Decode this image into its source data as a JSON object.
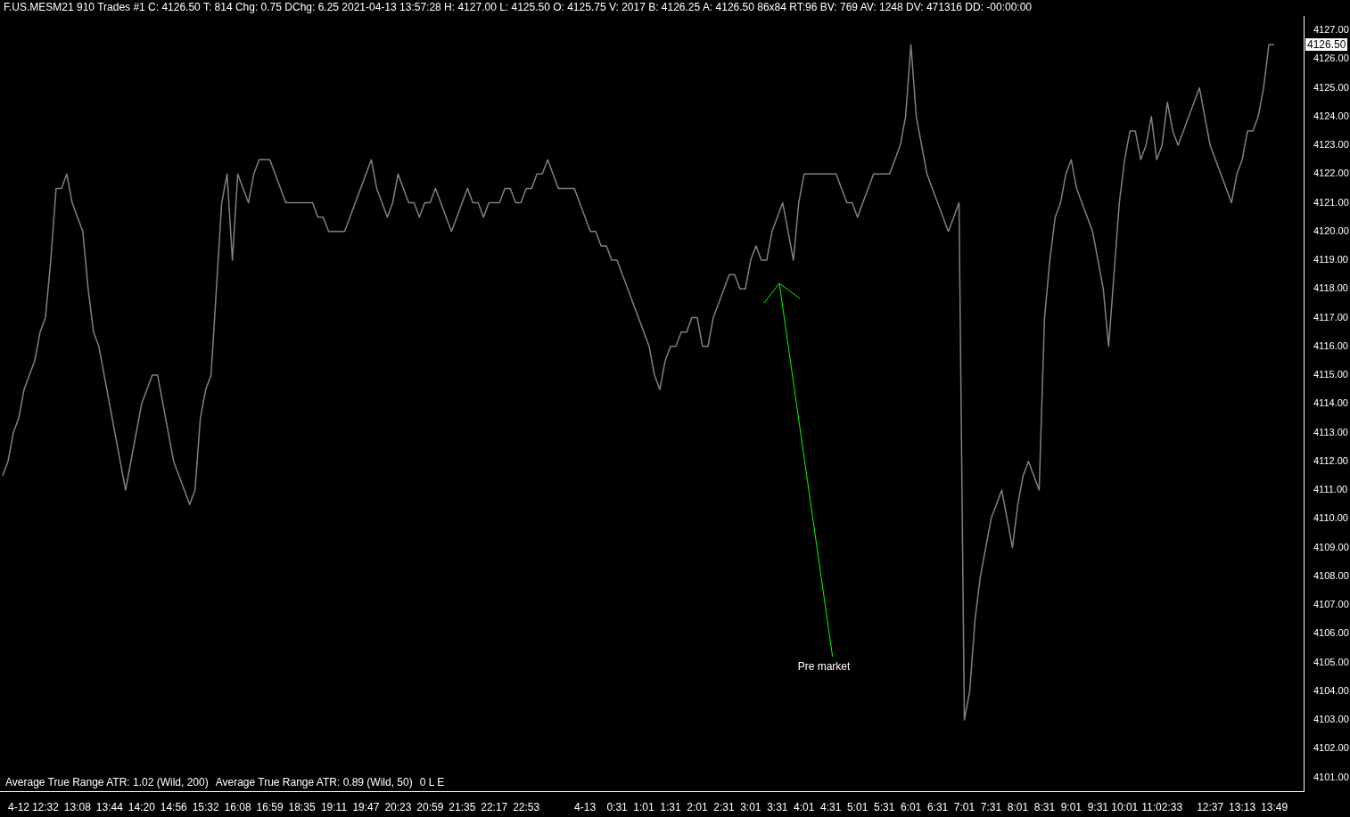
{
  "chart_data": {
    "type": "line",
    "title": "F.US.MESM21  910 Trades  #1 C: 4126.50 T: 814 Chg: 0.75 DChg: 6.25 2021-04-13 13:57:28 H: 4127.00 L: 4125.50 O: 4125.75 V: 2017 B: 4126.25 A: 4126.50 86x84 RT:96 BV: 769 AV: 1248 DV: 471316 DD: -00:00:00",
    "categories": [
      null,
      null,
      null,
      "4-12",
      null,
      null,
      null,
      null,
      "12:32",
      null,
      null,
      null,
      null,
      null,
      "13:08",
      null,
      null,
      null,
      null,
      null,
      "13:44",
      null,
      null,
      null,
      null,
      null,
      "14:20",
      null,
      null,
      null,
      null,
      null,
      "14:56",
      null,
      null,
      null,
      null,
      null,
      "15:32",
      null,
      null,
      null,
      null,
      null,
      "16:08",
      null,
      null,
      null,
      null,
      null,
      "16:59",
      null,
      null,
      null,
      null,
      null,
      "18:35",
      null,
      null,
      null,
      null,
      null,
      "19:11",
      null,
      null,
      null,
      null,
      null,
      "19:47",
      null,
      null,
      null,
      null,
      null,
      "20:23",
      null,
      null,
      null,
      null,
      null,
      "20:59",
      null,
      null,
      null,
      null,
      null,
      "21:35",
      null,
      null,
      null,
      null,
      null,
      "22:17",
      null,
      null,
      null,
      null,
      null,
      "22:53",
      null,
      null,
      null,
      null,
      null,
      null,
      null,
      null,
      null,
      null,
      "4-13",
      null,
      null,
      null,
      null,
      null,
      "0:31",
      null,
      null,
      null,
      null,
      "1:01",
      null,
      null,
      null,
      null,
      "1:31",
      null,
      null,
      null,
      null,
      "2:01",
      null,
      null,
      null,
      null,
      "2:31",
      null,
      null,
      null,
      null,
      "3:01",
      null,
      null,
      null,
      null,
      "3:31",
      null,
      null,
      null,
      null,
      "4:01",
      null,
      null,
      null,
      null,
      "4:31",
      null,
      null,
      null,
      null,
      "5:01",
      null,
      null,
      null,
      null,
      "5:31",
      null,
      null,
      null,
      null,
      "6:01",
      null,
      null,
      null,
      null,
      "6:31",
      null,
      null,
      null,
      null,
      "7:01",
      null,
      null,
      null,
      null,
      "7:31",
      null,
      null,
      null,
      null,
      "8:01",
      null,
      null,
      null,
      null,
      "8:31",
      null,
      null,
      null,
      null,
      "9:01",
      null,
      null,
      null,
      null,
      "9:31",
      null,
      null,
      null,
      null,
      "10:01",
      null,
      null,
      null,
      null,
      null,
      null,
      "11:02:33",
      null,
      null,
      null,
      null,
      null,
      null,
      null,
      null,
      "12:37",
      null,
      null,
      null,
      null,
      null,
      "13:13",
      null,
      null,
      null,
      null,
      null,
      "13:49",
      null,
      null,
      null,
      null,
      null
    ],
    "series": [
      {
        "color": "#808080",
        "values": [
          4111.5,
          4112,
          4113,
          4113.5,
          4114.5,
          4115,
          4115.5,
          4116.5,
          4117,
          4119,
          4121.5,
          4121.5,
          4122,
          4121,
          4120.5,
          4120,
          4118,
          4116.5,
          4116,
          4115,
          4114,
          4113,
          4112,
          4111,
          4112,
          4113,
          4114,
          4114.5,
          4115,
          4115,
          4114,
          4113,
          4112,
          4111.5,
          4111,
          4110.5,
          4111,
          4113.5,
          4114.5,
          4115,
          4118,
          4121,
          4122,
          4119,
          4122,
          4121.5,
          4121,
          4122,
          4122.5,
          4122.5,
          4122.5,
          4122,
          4121.5,
          4121,
          4121,
          4121,
          4121,
          4121,
          4121,
          4120.5,
          4120.5,
          4120,
          4120,
          4120,
          4120,
          4120.5,
          4121,
          4121.5,
          4122,
          4122.5,
          4121.5,
          4121,
          4120.5,
          4121,
          4122,
          4121.5,
          4121,
          4121,
          4120.5,
          4121,
          4121,
          4121.5,
          4121,
          4120.5,
          4120,
          4120.5,
          4121,
          4121.5,
          4121,
          4121,
          4120.5,
          4121,
          4121,
          4121,
          4121.5,
          4121.5,
          4121,
          4121,
          4121.5,
          4121.5,
          4122,
          4122,
          4122.5,
          4122,
          4121.5,
          4121.5,
          4121.5,
          4121.5,
          4121,
          4120.5,
          4120,
          4120,
          4119.5,
          4119.5,
          4119,
          4119,
          4118.5,
          4118,
          4117.5,
          4117,
          4116.5,
          4116,
          4115,
          4114.5,
          4115.5,
          4116,
          4116,
          4116.5,
          4116.5,
          4117,
          4117,
          4116,
          4116,
          4117,
          4117.5,
          4118,
          4118.5,
          4118.5,
          4118,
          4118,
          4119,
          4119.5,
          4119,
          4119,
          4120,
          4120.5,
          4121,
          4120,
          4119,
          4121,
          4122,
          4122,
          4122,
          4122,
          4122,
          4122,
          4122,
          4121.5,
          4121,
          4121,
          4120.5,
          4121,
          4121.5,
          4122,
          4122,
          4122,
          4122,
          4122.5,
          4123,
          4124,
          4126.5,
          4124,
          4123,
          4122,
          4121.5,
          4121,
          4120.5,
          4120,
          4120.5,
          4121,
          4103,
          4104,
          4106.5,
          4108,
          4109,
          4110,
          4110.5,
          4111,
          4110,
          4109,
          4110.5,
          4111.5,
          4112,
          4111.5,
          4111,
          4117,
          4119,
          4120.5,
          4121,
          4122,
          4122.5,
          4121.5,
          4121,
          4120.5,
          4120,
          4119,
          4118,
          4116,
          4118.5,
          4121,
          4122.5,
          4123.5,
          4123.5,
          4122.5,
          4123,
          4124,
          4122.5,
          4123,
          4124.5,
          4123.5,
          4123,
          4123.5,
          4124,
          4124.5,
          4125,
          4124,
          4123,
          4122.5,
          4122,
          4121.5,
          4121,
          4122,
          4122.5,
          4123.5,
          4123.5,
          4124,
          4125,
          4126.5,
          4126.5,
          null,
          null,
          null,
          null,
          null
        ]
      }
    ],
    "ylim": [
      4100.5,
      4127.5
    ],
    "yticks": [
      {
        "value": 4101,
        "label": "4101.00"
      },
      {
        "value": 4102,
        "label": "4102.00"
      },
      {
        "value": 4103,
        "label": "4103.00"
      },
      {
        "value": 4104,
        "label": "4104.00"
      },
      {
        "value": 4105,
        "label": "4105.00"
      },
      {
        "value": 4106,
        "label": "4106.00"
      },
      {
        "value": 4107,
        "label": "4107.00"
      },
      {
        "value": 4108,
        "label": "4108.00"
      },
      {
        "value": 4109,
        "label": "4109.00"
      },
      {
        "value": 4110,
        "label": "4110.00"
      },
      {
        "value": 4111,
        "label": "4111.00"
      },
      {
        "value": 4112,
        "label": "4112.00"
      },
      {
        "value": 4113,
        "label": "4113.00"
      },
      {
        "value": 4114,
        "label": "4114.00"
      },
      {
        "value": 4115,
        "label": "4115.00"
      },
      {
        "value": 4116,
        "label": "4116.00"
      },
      {
        "value": 4117,
        "label": "4117.00"
      },
      {
        "value": 4118,
        "label": "4118.00"
      },
      {
        "value": 4119,
        "label": "4119.00"
      },
      {
        "value": 4120,
        "label": "4120.00"
      },
      {
        "value": 4121,
        "label": "4121.00"
      },
      {
        "value": 4122,
        "label": "4122.00"
      },
      {
        "value": 4123,
        "label": "4123.00"
      },
      {
        "value": 4124,
        "label": "4124.00"
      },
      {
        "value": 4125,
        "label": "4125.00"
      },
      {
        "value": 4126,
        "label": "4126.00"
      },
      {
        "value": 4127,
        "label": "4127.00"
      }
    ],
    "annotations": [
      "Pre market",
      "4126.50",
      "Average True Range ATR: 1.02 (Wild, 200)",
      "Average True Range ATR: 0.89 (Wild, 50)",
      "0 L E"
    ],
    "grid": false,
    "legend": false,
    "marker": "none",
    "line_style": "solid"
  }
}
